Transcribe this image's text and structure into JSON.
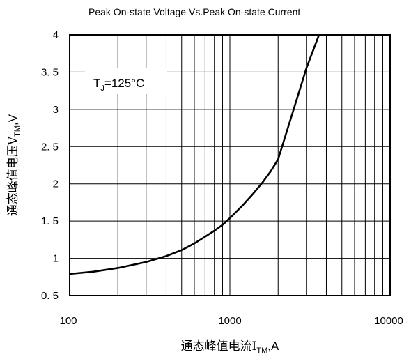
{
  "chart_data": {
    "type": "line",
    "title": "Peak On-state Voltage Vs.Peak On-state Current",
    "xlabel": {
      "text": "通态峰值电流I",
      "sub": "TM",
      "suffix": ",A"
    },
    "ylabel": {
      "text": "通态峰值电压V",
      "sub": "TM",
      "suffix": ",V"
    },
    "x_scale": "log",
    "xlim": [
      100,
      10000
    ],
    "ylim": [
      0.5,
      4
    ],
    "x_ticks": [
      100,
      1000,
      10000
    ],
    "x_tick_labels": [
      "100",
      "1000",
      "10000"
    ],
    "y_ticks": [
      0.5,
      1,
      1.5,
      2,
      2.5,
      3,
      3.5,
      4
    ],
    "y_tick_labels": [
      "0. 5",
      "1",
      "1. 5",
      "2",
      "2. 5",
      "3",
      "3. 5",
      "4"
    ],
    "grid": true,
    "annotation": {
      "main": "T",
      "sub": "J",
      "rest": "=125°C"
    },
    "series": [
      {
        "x": [
          100,
          140,
          200,
          300,
          400,
          500,
          600,
          700,
          800,
          900,
          1000,
          1200,
          1400,
          1600,
          1800,
          2000,
          2500,
          3000,
          3600
        ],
        "y": [
          0.79,
          0.82,
          0.87,
          0.95,
          1.03,
          1.11,
          1.2,
          1.29,
          1.37,
          1.45,
          1.54,
          1.71,
          1.87,
          2.02,
          2.17,
          2.33,
          3.0,
          3.55,
          4.0
        ]
      }
    ]
  }
}
